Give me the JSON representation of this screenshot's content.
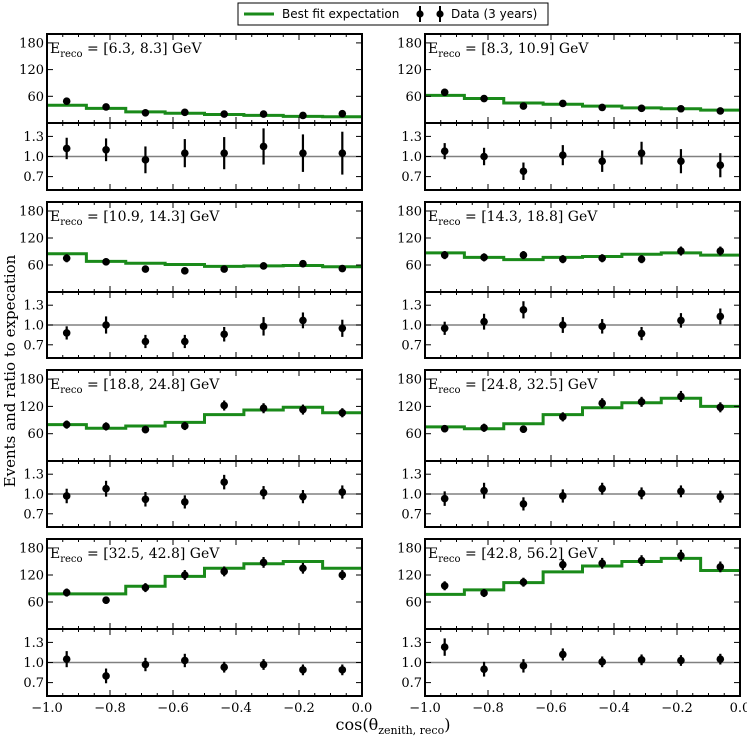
{
  "figure": {
    "legend": {
      "fit_label": "Best fit expectation",
      "data_label": "Data (3 years)",
      "fit_color": "#1a8a1a",
      "data_color": "#000000"
    },
    "ylabel": "Events and ratio to expecation",
    "xlabel_main": "cos(θ",
    "xlabel_sub": "zenith, reco",
    "xlabel_close": ")",
    "x_ticks": [
      "−1.0",
      "−0.8",
      "−0.6",
      "−0.4",
      "−0.2",
      "0.0"
    ],
    "event_ticks": [
      "60",
      "120",
      "180"
    ],
    "ratio_ticks": [
      "0.7",
      "1.0",
      "1.3"
    ]
  },
  "chart_data": [
    {
      "type": "step+errorbar",
      "title_prefix": "E",
      "title_sub": "reco",
      "title_range": " = [6.3, 8.3] GeV",
      "xlim": [
        -1.0,
        0.0
      ],
      "ylim_events": [
        0,
        200
      ],
      "ylim_ratio": [
        0.5,
        1.5
      ],
      "bin_edges": [
        -1.0,
        -0.875,
        -0.75,
        -0.625,
        -0.5,
        -0.375,
        -0.25,
        -0.125,
        0.0
      ],
      "expectation": [
        40,
        33,
        25,
        22,
        19,
        17,
        15,
        14
      ],
      "data": [
        49,
        36,
        23,
        24,
        20,
        20,
        17,
        21
      ],
      "data_err": [
        7,
        6,
        5,
        5,
        4,
        4,
        4,
        5
      ],
      "ratio": [
        1.12,
        1.1,
        0.95,
        1.05,
        1.05,
        1.15,
        1.05,
        1.05
      ],
      "ratio_err": [
        0.16,
        0.17,
        0.2,
        0.21,
        0.24,
        0.27,
        0.28,
        0.32
      ]
    },
    {
      "type": "step+errorbar",
      "title_prefix": "E",
      "title_sub": "reco",
      "title_range": " = [8.3, 10.9] GeV",
      "xlim": [
        -1.0,
        0.0
      ],
      "ylim_events": [
        0,
        200
      ],
      "ylim_ratio": [
        0.5,
        1.5
      ],
      "bin_edges": [
        -1.0,
        -0.875,
        -0.75,
        -0.625,
        -0.5,
        -0.375,
        -0.25,
        -0.125,
        0.0
      ],
      "expectation": [
        62,
        55,
        45,
        42,
        38,
        34,
        32,
        29
      ],
      "data": [
        69,
        55,
        38,
        44,
        35,
        33,
        32,
        27
      ],
      "data_err": [
        8,
        7,
        6,
        6,
        6,
        6,
        6,
        5
      ],
      "ratio": [
        1.08,
        1.0,
        0.78,
        1.02,
        0.93,
        1.05,
        0.93,
        0.87
      ],
      "ratio_err": [
        0.12,
        0.13,
        0.13,
        0.15,
        0.16,
        0.17,
        0.18,
        0.18
      ]
    },
    {
      "type": "step+errorbar",
      "title_prefix": "E",
      "title_sub": "reco",
      "title_range": " = [10.9, 14.3] GeV",
      "xlim": [
        -1.0,
        0.0
      ],
      "ylim_events": [
        0,
        200
      ],
      "ylim_ratio": [
        0.5,
        1.5
      ],
      "bin_edges": [
        -1.0,
        -0.875,
        -0.75,
        -0.625,
        -0.5,
        -0.375,
        -0.25,
        -0.125,
        0.0
      ],
      "expectation": [
        85,
        68,
        64,
        61,
        57,
        58,
        59,
        56
      ],
      "data": [
        75,
        67,
        51,
        47,
        51,
        58,
        63,
        52
      ],
      "data_err": [
        9,
        8,
        7,
        7,
        7,
        8,
        8,
        7
      ],
      "ratio": [
        0.88,
        1.0,
        0.75,
        0.75,
        0.86,
        0.98,
        1.07,
        0.95
      ],
      "ratio_err": [
        0.1,
        0.13,
        0.1,
        0.1,
        0.11,
        0.14,
        0.12,
        0.13
      ]
    },
    {
      "type": "step+errorbar",
      "title_prefix": "E",
      "title_sub": "reco",
      "title_range": " = [14.3, 18.8] GeV",
      "xlim": [
        -1.0,
        0.0
      ],
      "ylim_events": [
        0,
        200
      ],
      "ylim_ratio": [
        0.5,
        1.5
      ],
      "bin_edges": [
        -1.0,
        -0.875,
        -0.75,
        -0.625,
        -0.5,
        -0.375,
        -0.25,
        -0.125,
        0.0
      ],
      "expectation": [
        87,
        77,
        72,
        77,
        79,
        84,
        87,
        82
      ],
      "data": [
        82,
        77,
        82,
        73,
        75,
        73,
        91,
        91
      ],
      "data_err": [
        9,
        9,
        9,
        9,
        9,
        9,
        10,
        10
      ],
      "ratio": [
        0.95,
        1.05,
        1.23,
        1.0,
        0.98,
        0.87,
        1.07,
        1.13
      ],
      "ratio_err": [
        0.1,
        0.12,
        0.13,
        0.12,
        0.11,
        0.1,
        0.11,
        0.12
      ]
    },
    {
      "type": "step+errorbar",
      "title_prefix": "E",
      "title_sub": "reco",
      "title_range": " = [18.8, 24.8] GeV",
      "xlim": [
        -1.0,
        0.0
      ],
      "ylim_events": [
        0,
        200
      ],
      "ylim_ratio": [
        0.5,
        1.5
      ],
      "bin_edges": [
        -1.0,
        -0.875,
        -0.75,
        -0.625,
        -0.5,
        -0.375,
        -0.25,
        -0.125,
        0.0
      ],
      "expectation": [
        80,
        72,
        77,
        85,
        102,
        112,
        118,
        106
      ],
      "data": [
        80,
        76,
        69,
        77,
        122,
        116,
        113,
        106
      ],
      "data_err": [
        9,
        9,
        8,
        9,
        11,
        11,
        11,
        10
      ],
      "ratio": [
        0.97,
        1.08,
        0.92,
        0.88,
        1.18,
        1.02,
        0.96,
        1.03
      ],
      "ratio_err": [
        0.11,
        0.12,
        0.11,
        0.1,
        0.11,
        0.1,
        0.1,
        0.1
      ]
    },
    {
      "type": "step+errorbar",
      "title_prefix": "E",
      "title_sub": "reco",
      "title_range": " = [24.8, 32.5] GeV",
      "xlim": [
        -1.0,
        0.0
      ],
      "ylim_events": [
        0,
        200
      ],
      "ylim_ratio": [
        0.5,
        1.5
      ],
      "bin_edges": [
        -1.0,
        -0.875,
        -0.75,
        -0.625,
        -0.5,
        -0.375,
        -0.25,
        -0.125,
        0.0
      ],
      "expectation": [
        75,
        71,
        82,
        102,
        117,
        128,
        138,
        120
      ],
      "data": [
        71,
        73,
        70,
        97,
        127,
        130,
        142,
        118
      ],
      "data_err": [
        8,
        9,
        8,
        10,
        11,
        11,
        12,
        11
      ],
      "ratio": [
        0.93,
        1.05,
        0.85,
        0.97,
        1.08,
        1.01,
        1.04,
        0.96
      ],
      "ratio_err": [
        0.11,
        0.12,
        0.1,
        0.1,
        0.09,
        0.09,
        0.09,
        0.09
      ]
    },
    {
      "type": "step+errorbar",
      "title_prefix": "E",
      "title_sub": "reco",
      "title_range": " = [32.5, 42.8] GeV",
      "xlim": [
        -1.0,
        0.0
      ],
      "ylim_events": [
        0,
        200
      ],
      "ylim_ratio": [
        0.5,
        1.5
      ],
      "bin_edges": [
        -1.0,
        -0.875,
        -0.75,
        -0.625,
        -0.5,
        -0.375,
        -0.25,
        -0.125,
        0.0
      ],
      "expectation": [
        78,
        78,
        95,
        117,
        135,
        145,
        150,
        135
      ],
      "data": [
        81,
        64,
        92,
        120,
        128,
        148,
        135,
        120
      ],
      "data_err": [
        9,
        8,
        10,
        11,
        11,
        12,
        12,
        11
      ],
      "ratio": [
        1.05,
        0.8,
        0.97,
        1.03,
        0.93,
        0.97,
        0.89,
        0.89
      ],
      "ratio_err": [
        0.12,
        0.11,
        0.1,
        0.1,
        0.08,
        0.08,
        0.08,
        0.08
      ]
    },
    {
      "type": "step+errorbar",
      "title_prefix": "E",
      "title_sub": "reco",
      "title_range": " = [42.8, 56.2] GeV",
      "xlim": [
        -1.0,
        0.0
      ],
      "ylim_events": [
        0,
        200
      ],
      "ylim_ratio": [
        0.5,
        1.5
      ],
      "bin_edges": [
        -1.0,
        -0.875,
        -0.75,
        -0.625,
        -0.5,
        -0.375,
        -0.25,
        -0.125,
        0.0
      ],
      "expectation": [
        77,
        87,
        103,
        127,
        140,
        150,
        157,
        130
      ],
      "data": [
        96,
        80,
        104,
        143,
        146,
        152,
        163,
        138
      ],
      "data_err": [
        10,
        9,
        10,
        12,
        12,
        12,
        13,
        12
      ],
      "ratio": [
        1.23,
        0.9,
        0.95,
        1.12,
        1.01,
        1.04,
        1.03,
        1.05
      ],
      "ratio_err": [
        0.13,
        0.11,
        0.1,
        0.09,
        0.08,
        0.08,
        0.08,
        0.08
      ]
    }
  ]
}
